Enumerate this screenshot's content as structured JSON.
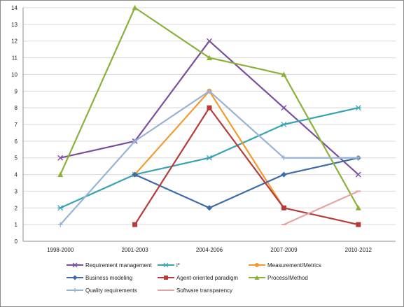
{
  "chart_data": {
    "type": "line",
    "title": "",
    "xlabel": "",
    "ylabel": "",
    "categories": [
      "1998-2000",
      "2001-2003",
      "2004-2006",
      "2007-2009",
      "2010-2012"
    ],
    "ylim": [
      0,
      14
    ],
    "ytick_step": 1,
    "grid": "horizontal",
    "legend_position": "bottom",
    "series": [
      {
        "name": "Requirement management",
        "color": "#7a4f9e",
        "marker": "x",
        "values": [
          5,
          6,
          12,
          8,
          4
        ]
      },
      {
        "name": "i*",
        "color": "#37a3b3",
        "marker": "asterisk",
        "values": [
          2,
          4,
          5,
          7,
          8
        ]
      },
      {
        "name": "Measurement/Metrics",
        "color": "#f39a2f",
        "marker": "circle",
        "values": [
          null,
          4,
          9,
          2,
          null
        ]
      },
      {
        "name": "Business modeling",
        "color": "#3b6ba8",
        "marker": "diamond",
        "values": [
          null,
          4,
          2,
          4,
          5
        ]
      },
      {
        "name": "Agent-oriented paradigm",
        "color": "#b83b3b",
        "marker": "square",
        "values": [
          null,
          1,
          8,
          2,
          1
        ]
      },
      {
        "name": "Process/Method",
        "color": "#8bb13a",
        "marker": "triangle",
        "values": [
          4,
          14,
          11,
          10,
          2
        ]
      },
      {
        "name": "Quality requirements",
        "color": "#98b3d6",
        "marker": "plus",
        "values": [
          1,
          6,
          9,
          5,
          5
        ]
      },
      {
        "name": "Software transparency",
        "color": "#e6a3a3",
        "marker": "dash",
        "values": [
          null,
          null,
          null,
          1,
          3
        ]
      }
    ]
  }
}
